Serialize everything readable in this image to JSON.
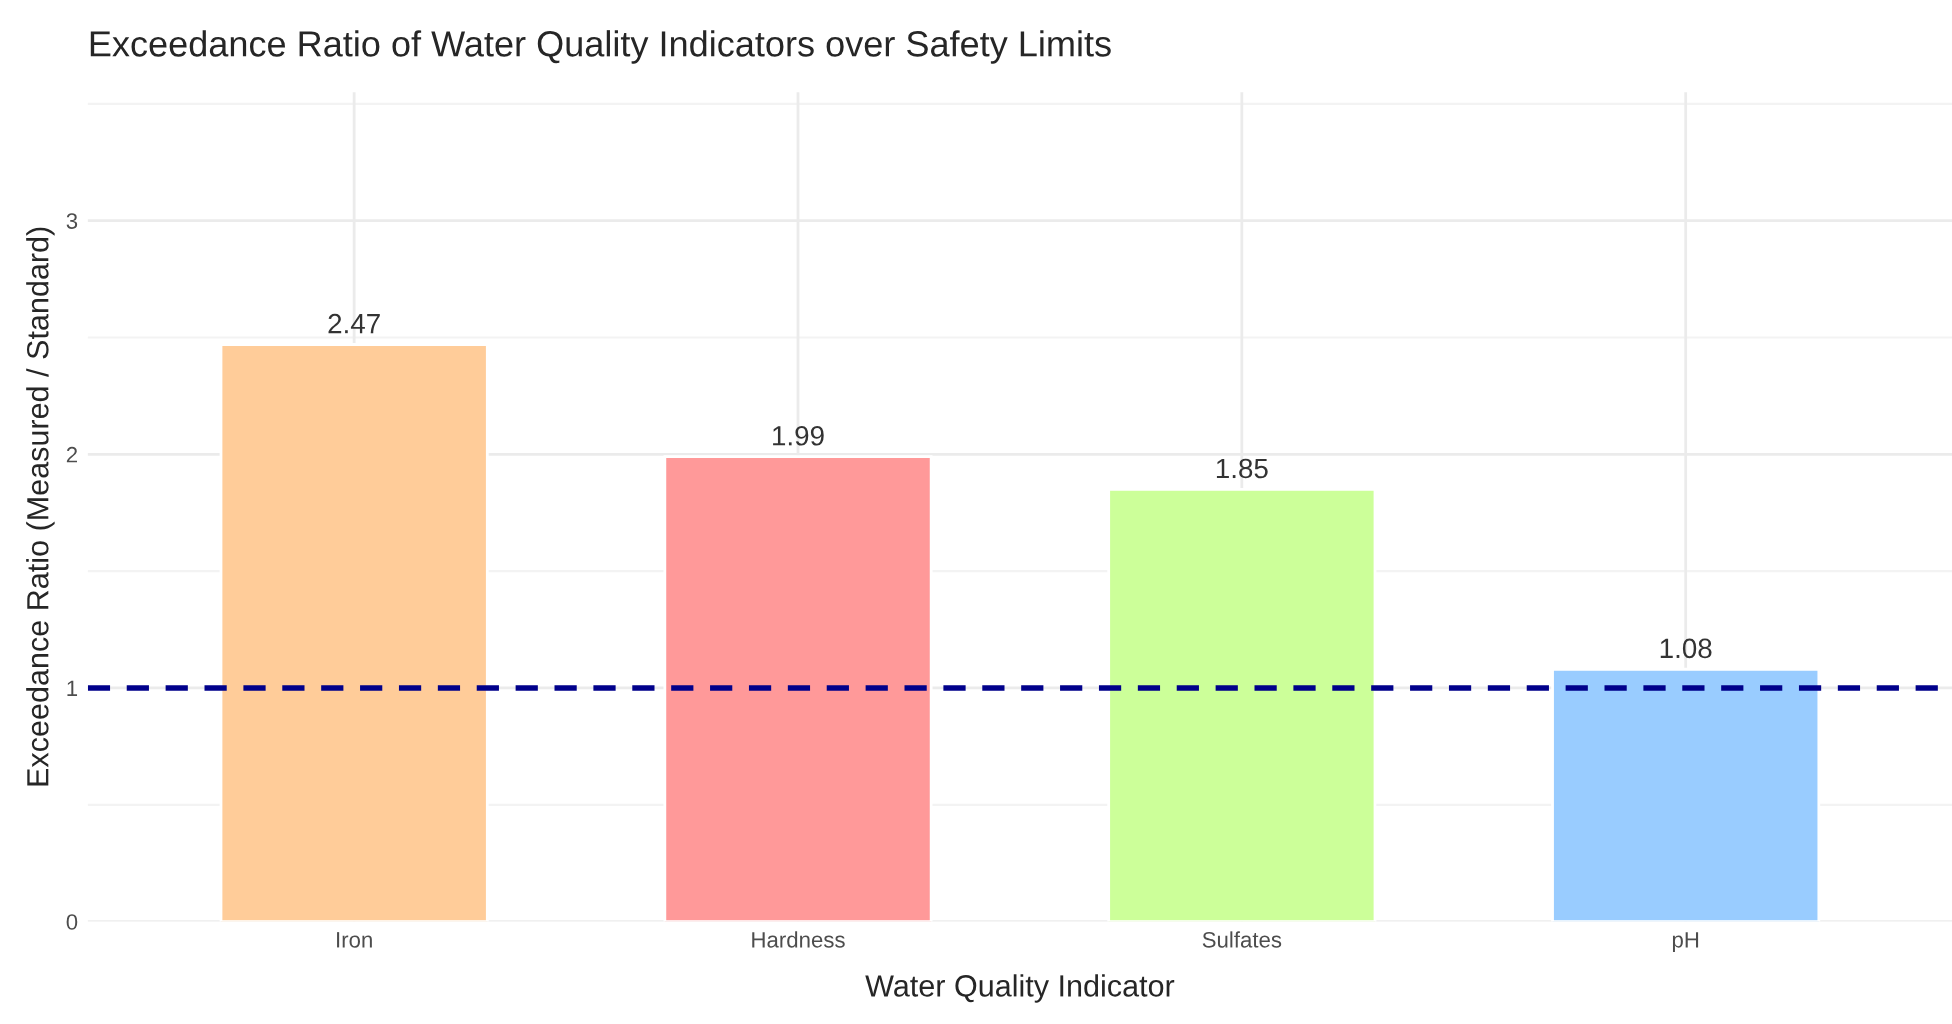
{
  "chart_data": {
    "type": "bar",
    "title": "Exceedance Ratio of Water Quality Indicators over Safety Limits",
    "xlabel": "Water Quality Indicator",
    "ylabel": "Exceedance Ratio (Measured / Standard)",
    "categories": [
      "Iron",
      "Hardness",
      "Sulfates",
      "pH"
    ],
    "values": [
      2.47,
      1.99,
      1.85,
      1.08
    ],
    "colors": [
      "#ffcc99",
      "#ff9999",
      "#ccff99",
      "#99ccff"
    ],
    "ylim": [
      0,
      3.55
    ],
    "yticks": [
      0,
      1,
      2,
      3
    ],
    "grid": true,
    "data_labels": true,
    "ref_lines": [
      {
        "axis": "y",
        "value": 1,
        "color": "#00008b",
        "line_style": "dashed"
      }
    ]
  }
}
